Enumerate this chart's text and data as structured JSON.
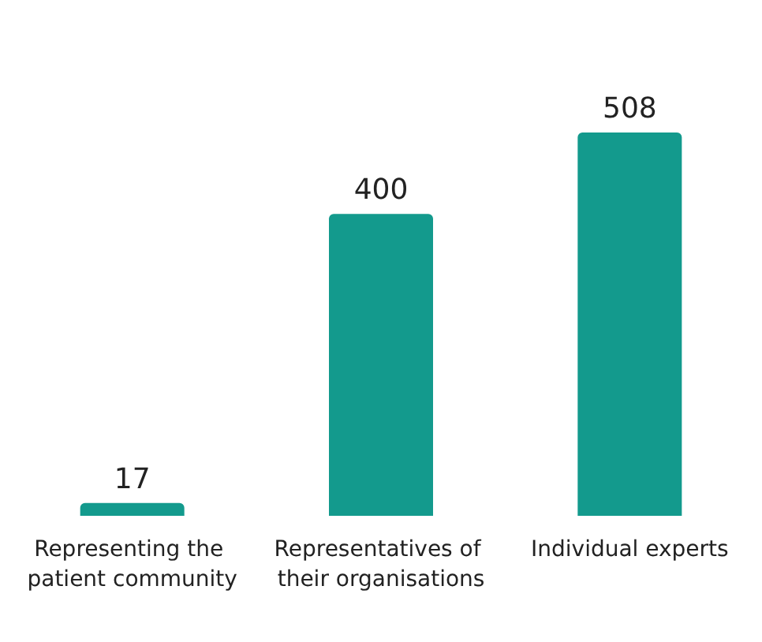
{
  "chart_data": {
    "type": "bar",
    "categories": [
      "Representing the patient community",
      "Representatives of their organisations",
      "Individual experts"
    ],
    "values": [
      17,
      400,
      508
    ],
    "color": "#139a8d",
    "data_labels": true
  }
}
